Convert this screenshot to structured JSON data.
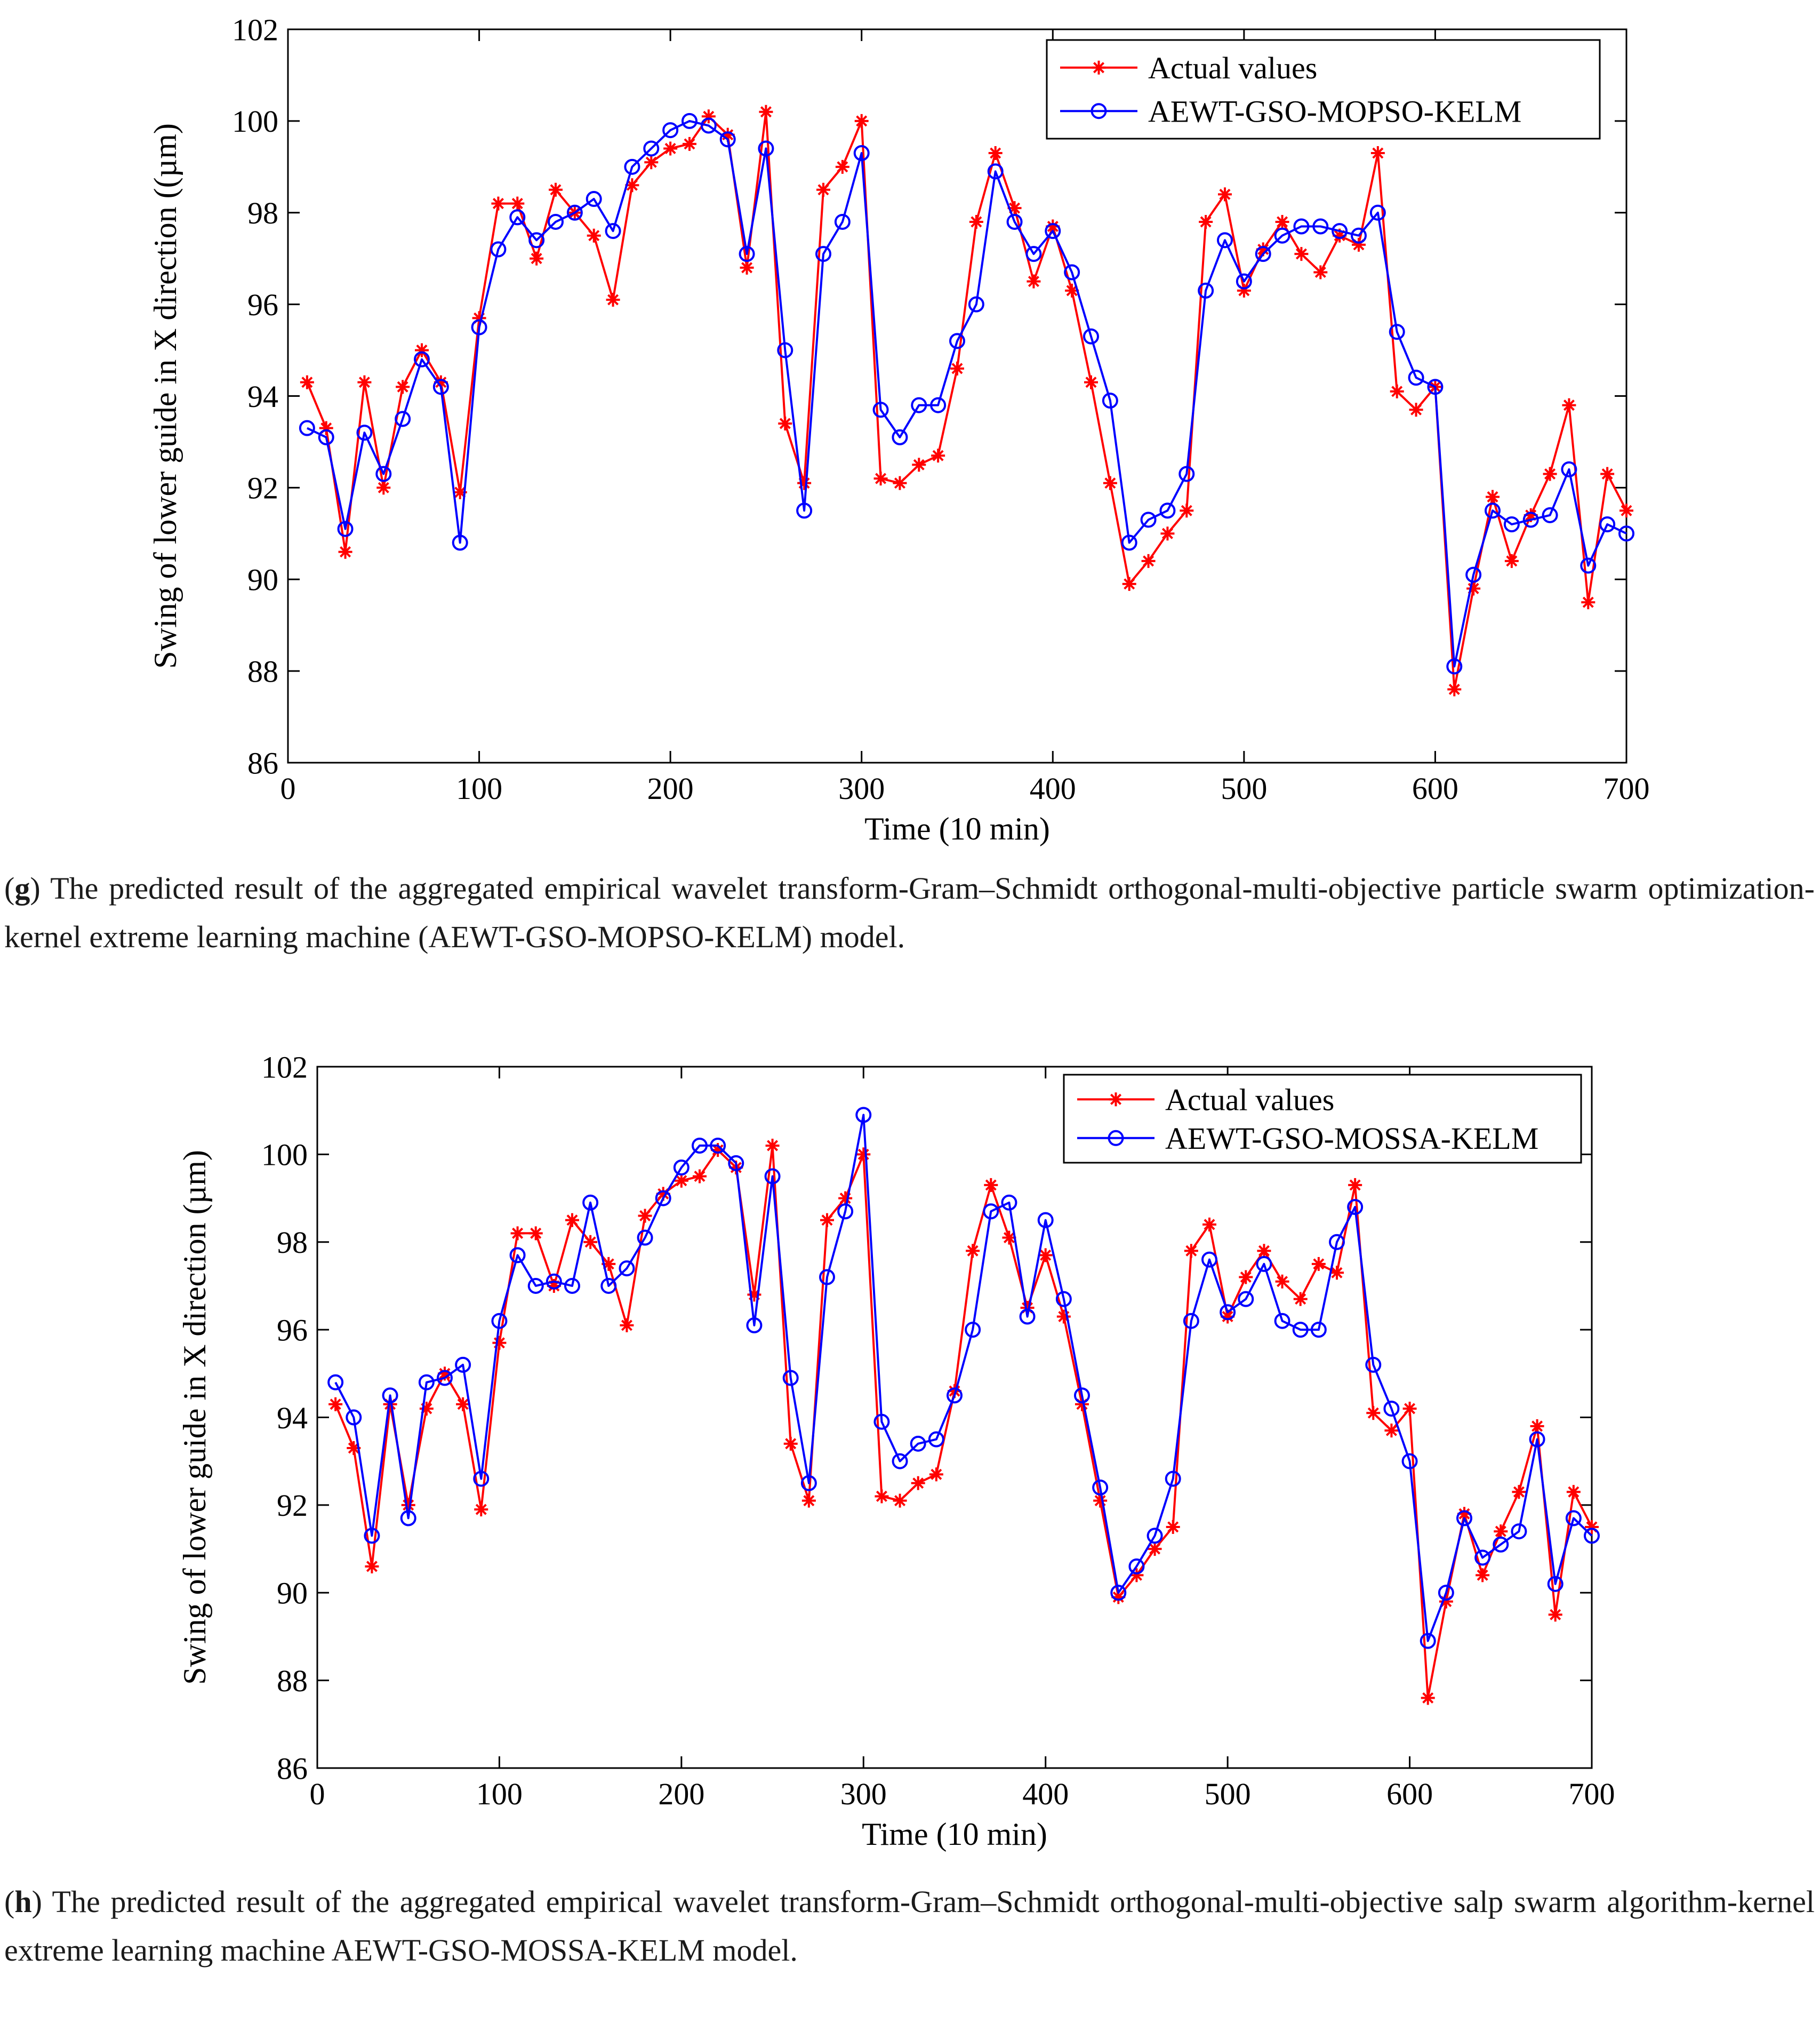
{
  "chart_data": [
    {
      "id": "g",
      "type": "line",
      "title": "",
      "xlabel": "Time (10 min)",
      "ylabel": "Swing of lower guide in X direction ((µm)",
      "xlim": [
        0,
        700
      ],
      "ylim": [
        86,
        102
      ],
      "xticks": [
        "0",
        "100",
        "200",
        "300",
        "400",
        "500",
        "600",
        "700"
      ],
      "yticks": [
        "86",
        "88",
        "90",
        "92",
        "94",
        "96",
        "98",
        "100",
        "102"
      ],
      "grid": false,
      "legend": "top-right",
      "x": [
        10,
        20,
        30,
        40,
        50,
        60,
        70,
        80,
        90,
        100,
        110,
        120,
        130,
        140,
        150,
        160,
        170,
        180,
        190,
        200,
        210,
        220,
        230,
        240,
        250,
        260,
        270,
        280,
        290,
        300,
        310,
        320,
        330,
        340,
        350,
        360,
        370,
        380,
        390,
        400,
        410,
        420,
        430,
        440,
        450,
        460,
        470,
        480,
        490,
        500,
        510,
        520,
        530,
        540,
        550,
        560,
        570,
        580,
        590,
        600,
        610,
        620,
        630,
        640,
        650,
        660,
        670,
        680,
        690,
        700
      ],
      "series": [
        {
          "name": "Actual values",
          "color": "#ff0000",
          "marker": "asterisk",
          "values": [
            94.3,
            93.3,
            90.6,
            94.3,
            92.0,
            94.2,
            95.0,
            94.3,
            91.9,
            95.7,
            98.2,
            98.2,
            97.0,
            98.5,
            98.0,
            97.5,
            96.1,
            98.6,
            99.1,
            99.4,
            99.5,
            100.1,
            99.7,
            96.8,
            100.2,
            93.4,
            92.1,
            98.5,
            99.0,
            100.0,
            92.2,
            92.1,
            92.5,
            92.7,
            94.6,
            97.8,
            99.3,
            98.1,
            96.5,
            97.7,
            96.3,
            94.3,
            92.1,
            89.9,
            90.4,
            91.0,
            91.5,
            97.8,
            98.4,
            96.3,
            97.2,
            97.8,
            97.1,
            96.7,
            97.5,
            97.3,
            99.3,
            94.1,
            93.7,
            94.2,
            87.6,
            89.8,
            91.8,
            90.4,
            91.4,
            92.3,
            93.8,
            89.5,
            92.3,
            91.5
          ]
        },
        {
          "name": "AEWT-GSO-MOPSO-KELM",
          "color": "#0000ff",
          "marker": "circle",
          "values": [
            93.3,
            93.1,
            91.1,
            93.2,
            92.3,
            93.5,
            94.8,
            94.2,
            90.8,
            95.5,
            97.2,
            97.9,
            97.4,
            97.8,
            98.0,
            98.3,
            97.6,
            99.0,
            99.4,
            99.8,
            100.0,
            99.9,
            99.6,
            97.1,
            99.4,
            95.0,
            91.5,
            97.1,
            97.8,
            99.3,
            93.7,
            93.1,
            93.8,
            93.8,
            95.2,
            96.0,
            98.9,
            97.8,
            97.1,
            97.6,
            96.7,
            95.3,
            93.9,
            90.8,
            91.3,
            91.5,
            92.3,
            96.3,
            97.4,
            96.5,
            97.1,
            97.5,
            97.7,
            97.7,
            97.6,
            97.5,
            98.0,
            95.4,
            94.4,
            94.2,
            88.1,
            90.1,
            91.5,
            91.2,
            91.3,
            91.4,
            92.4,
            90.3,
            91.2,
            91.0
          ]
        }
      ]
    },
    {
      "id": "h",
      "type": "line",
      "title": "",
      "xlabel": "Time (10 min)",
      "ylabel": "Swing of lower guide in X direction (µm)",
      "xlim": [
        0,
        700
      ],
      "ylim": [
        86,
        102
      ],
      "xticks": [
        "0",
        "100",
        "200",
        "300",
        "400",
        "500",
        "600",
        "700"
      ],
      "yticks": [
        "86",
        "88",
        "90",
        "92",
        "94",
        "96",
        "98",
        "100",
        "102"
      ],
      "grid": false,
      "legend": "top-right",
      "x": [
        10,
        20,
        30,
        40,
        50,
        60,
        70,
        80,
        90,
        100,
        110,
        120,
        130,
        140,
        150,
        160,
        170,
        180,
        190,
        200,
        210,
        220,
        230,
        240,
        250,
        260,
        270,
        280,
        290,
        300,
        310,
        320,
        330,
        340,
        350,
        360,
        370,
        380,
        390,
        400,
        410,
        420,
        430,
        440,
        450,
        460,
        470,
        480,
        490,
        500,
        510,
        520,
        530,
        540,
        550,
        560,
        570,
        580,
        590,
        600,
        610,
        620,
        630,
        640,
        650,
        660,
        670,
        680,
        690,
        700
      ],
      "series": [
        {
          "name": "Actual values",
          "color": "#ff0000",
          "marker": "asterisk",
          "values": [
            94.3,
            93.3,
            90.6,
            94.3,
            92.0,
            94.2,
            95.0,
            94.3,
            91.9,
            95.7,
            98.2,
            98.2,
            97.0,
            98.5,
            98.0,
            97.5,
            96.1,
            98.6,
            99.1,
            99.4,
            99.5,
            100.1,
            99.7,
            96.8,
            100.2,
            93.4,
            92.1,
            98.5,
            99.0,
            100.0,
            92.2,
            92.1,
            92.5,
            92.7,
            94.6,
            97.8,
            99.3,
            98.1,
            96.5,
            97.7,
            96.3,
            94.3,
            92.1,
            89.9,
            90.4,
            91.0,
            91.5,
            97.8,
            98.4,
            96.3,
            97.2,
            97.8,
            97.1,
            96.7,
            97.5,
            97.3,
            99.3,
            94.1,
            93.7,
            94.2,
            87.6,
            89.8,
            91.8,
            90.4,
            91.4,
            92.3,
            93.8,
            89.5,
            92.3,
            91.5
          ]
        },
        {
          "name": "AEWT-GSO-MOSSA-KELM",
          "color": "#0000ff",
          "marker": "circle",
          "values": [
            94.8,
            94.0,
            91.3,
            94.5,
            91.7,
            94.8,
            94.9,
            95.2,
            92.6,
            96.2,
            97.7,
            97.0,
            97.1,
            97.0,
            98.9,
            97.0,
            97.4,
            98.1,
            99.0,
            99.7,
            100.2,
            100.2,
            99.8,
            96.1,
            99.5,
            94.9,
            92.5,
            97.2,
            98.7,
            100.9,
            93.9,
            93.0,
            93.4,
            93.5,
            94.5,
            96.0,
            98.7,
            98.9,
            96.3,
            98.5,
            96.7,
            94.5,
            92.4,
            90.0,
            90.6,
            91.3,
            92.6,
            96.2,
            97.6,
            96.4,
            96.7,
            97.5,
            96.2,
            96.0,
            96.0,
            98.0,
            98.8,
            95.2,
            94.2,
            93.0,
            88.9,
            90.0,
            91.7,
            90.8,
            91.1,
            91.4,
            93.5,
            90.2,
            91.7,
            91.3
          ]
        }
      ]
    }
  ],
  "captions": {
    "g": {
      "label": "g",
      "text": "The predicted result of the aggregated empirical wavelet transform-Gram–Schmidt orthogonal-multi-objective particle swarm optimization-kernel extreme learning machine (AEWT-GSO-MOPSO-KELM) model."
    },
    "h": {
      "label": "h",
      "text": "The predicted result of the aggregated empirical wavelet transform-Gram–Schmidt orthogonal-multi-objective salp swarm algorithm-kernel extreme learning machine AEWT-GSO-MOSSA-KELM model."
    }
  }
}
